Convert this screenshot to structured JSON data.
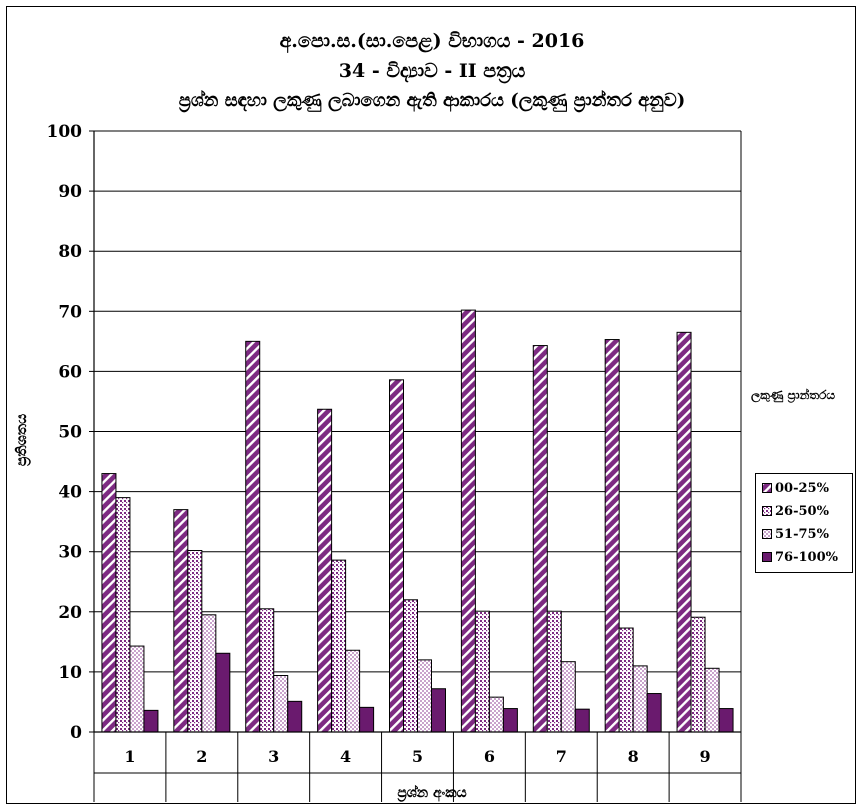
{
  "chart_data": {
    "type": "bar",
    "title_lines": [
      "අ.පො.ස.(සා.පෙළ) විභාගය - 2016",
      "34 - විද්‍යාව - II පත්‍රය",
      "ප්‍රශ්න සඳහා ලකුණු ලබාගෙන ඇති ආකාරය (ලකුණු ප්‍රාන්තර අනුව)"
    ],
    "xlabel": "ප්‍රශ්න අංකය",
    "ylabel": "ප්‍රතිශතය",
    "legend_title": "ලකුණු ප්‍රාන්තරය",
    "legend_position": "right",
    "ylim": [
      0,
      100
    ],
    "yticks": [
      0,
      10,
      20,
      30,
      40,
      50,
      60,
      70,
      80,
      90,
      100
    ],
    "grid": true,
    "categories": [
      "1",
      "2",
      "3",
      "4",
      "5",
      "6",
      "7",
      "8",
      "9"
    ],
    "series": [
      {
        "name": "00-25%",
        "values": [
          43,
          37,
          65,
          53.7,
          58.6,
          70.2,
          64.3,
          65.3,
          66.5
        ]
      },
      {
        "name": "26-50%",
        "values": [
          39,
          30.2,
          20.5,
          28.6,
          22,
          20.1,
          20.1,
          17.3,
          19.1
        ]
      },
      {
        "name": "51-75%",
        "values": [
          14.3,
          19.5,
          9.4,
          13.6,
          12,
          5.8,
          11.7,
          11,
          10.6
        ]
      },
      {
        "name": "76-100%",
        "values": [
          3.6,
          13.1,
          5.1,
          4.1,
          7.2,
          3.9,
          3.8,
          6.4,
          3.9
        ]
      }
    ],
    "colors": {
      "purple": "#7d2a82",
      "dark_purple": "#6a1a6e"
    }
  }
}
